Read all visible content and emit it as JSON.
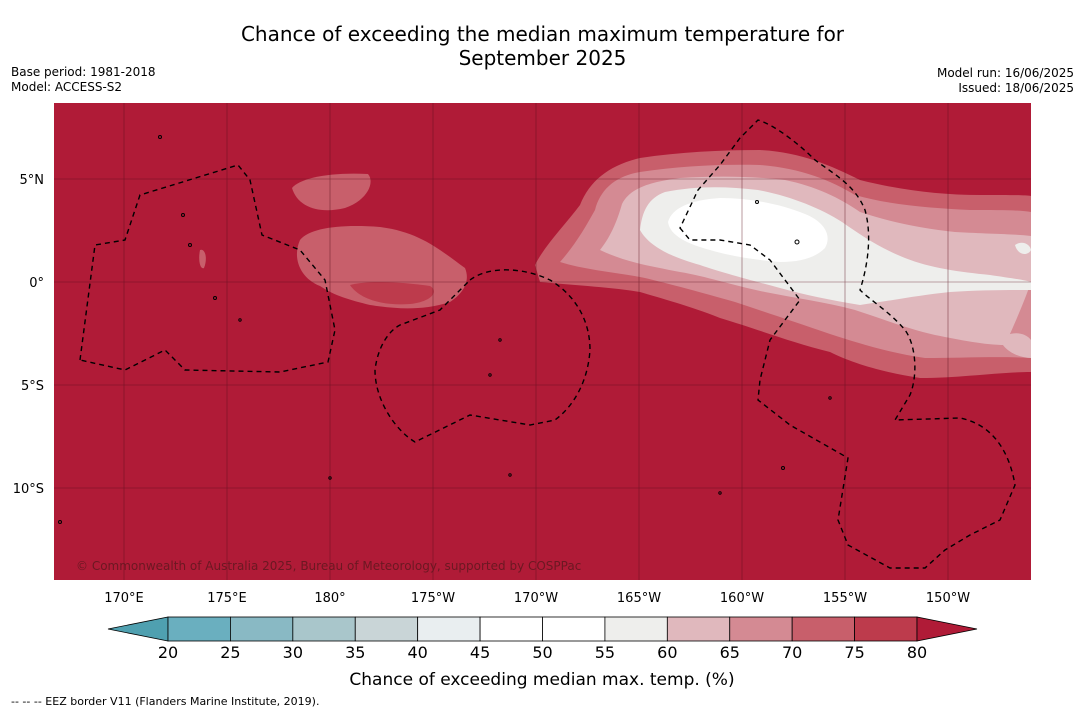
{
  "title_line1": "Chance of exceeding the median maximum temperature for",
  "title_line2": "September 2025",
  "base_period": "Base period: 1981-2018",
  "model": "Model: ACCESS-S2",
  "model_run": "Model run: 16/06/2025",
  "issued": "Issued: 18/06/2025",
  "copyright": "© Commonwealth of Australia 2025, Bureau of Meteorology, supported by COSPPac",
  "lon_ticks": [
    "170°E",
    "175°E",
    "180°",
    "175°W",
    "170°W",
    "165°W",
    "160°W",
    "155°W",
    "150°W"
  ],
  "lat_ticks": [
    "5°N",
    "0°",
    "5°S",
    "10°S"
  ],
  "colorbar": {
    "labels": [
      "20",
      "25",
      "30",
      "35",
      "40",
      "45",
      "50",
      "55",
      "60",
      "65",
      "70",
      "75",
      "80"
    ],
    "colors": [
      "#4fa0b0",
      "#6aafbf",
      "#89b9c4",
      "#a9c6cb",
      "#c9d5d7",
      "#e9eef0",
      "#ffffff",
      "#ffffff",
      "#eeeeec",
      "#e0b8bd",
      "#d48a93",
      "#c85f6b",
      "#bd3b4c",
      "#b01b37"
    ],
    "title": "Chance of exceeding median max. temp. (%)"
  },
  "footnote": "--  --  -- EEZ border V11 (Flanders Marine Institute, 2019)."
}
